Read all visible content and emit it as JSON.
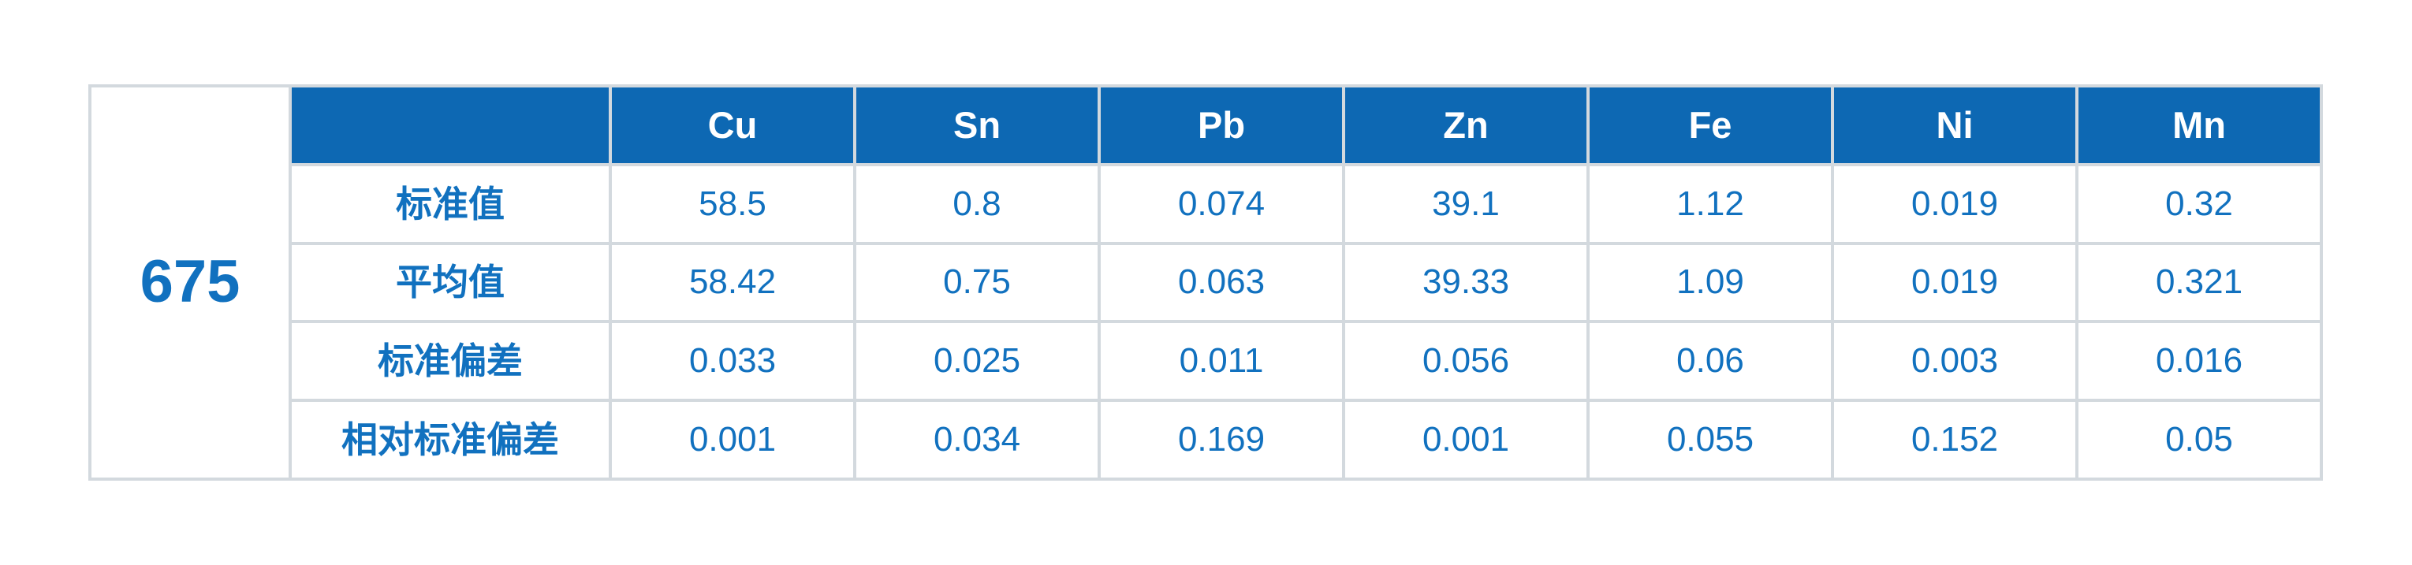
{
  "table": {
    "sample_id": "675",
    "columns": [
      "Cu",
      "Sn",
      "Pb",
      "Zn",
      "Fe",
      "Ni",
      "Mn"
    ],
    "rows": [
      {
        "label": "标准值",
        "values": [
          "58.5",
          "0.8",
          "0.074",
          "39.1",
          "1.12",
          "0.019",
          "0.32"
        ]
      },
      {
        "label": "平均值",
        "values": [
          "58.42",
          "0.75",
          "0.063",
          "39.33",
          "1.09",
          "0.019",
          "0.321"
        ]
      },
      {
        "label": "标准偏差",
        "values": [
          "0.033",
          "0.025",
          "0.011",
          "0.056",
          "0.06",
          "0.003",
          "0.016"
        ]
      },
      {
        "label": "相对标准偏差",
        "values": [
          "0.001",
          "0.034",
          "0.169",
          "0.001",
          "0.055",
          "0.152",
          "0.05"
        ]
      }
    ]
  },
  "colors": {
    "header_bg": "#0d68b3",
    "header_text": "#ffffff",
    "cell_text": "#1171bf",
    "border": "#d3d9de",
    "page_bg": "#ffffff"
  }
}
